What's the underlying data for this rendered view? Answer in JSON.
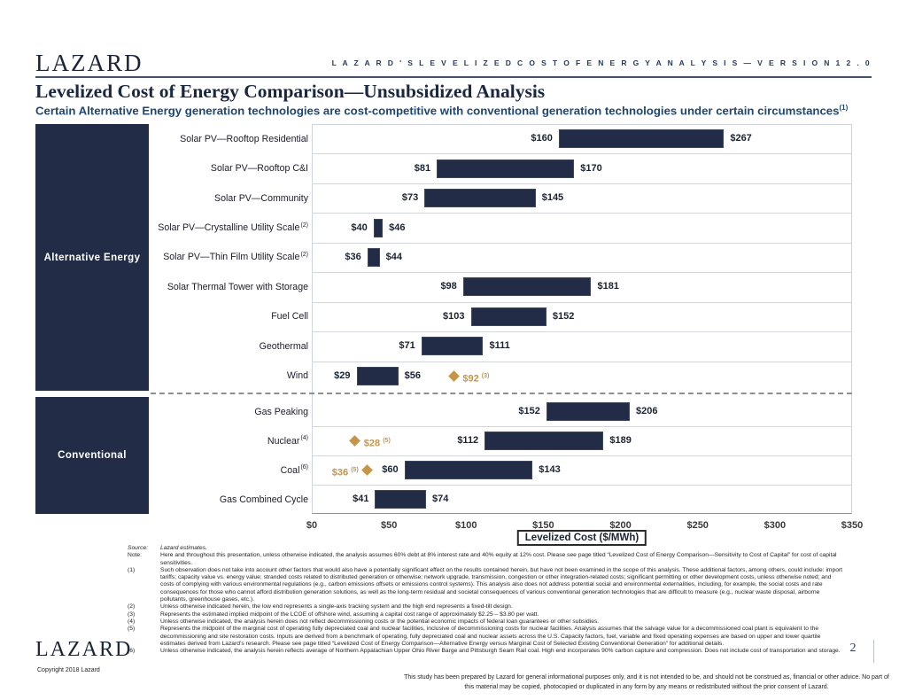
{
  "header": {
    "logo": "LAZARD",
    "right_title": "L A Z A R D ' S   L E V E L I Z E D   C O S T   O F   E N E R G Y   A N A L Y S I S — V E R S I O N   1 2 . 0",
    "title": "Levelized Cost of Energy Comparison—Unsubsidized Analysis",
    "subtitle": "Certain Alternative Energy generation technologies are cost-competitive with conventional generation technologies under certain circumstances",
    "subtitle_sup": "(1)"
  },
  "chart_data": {
    "type": "bar",
    "variant": "horizontal-range",
    "xlabel": "Levelized Cost ($/MWh)",
    "xlim": [
      0,
      350
    ],
    "xticks": [
      {
        "v": 0,
        "label": "$0"
      },
      {
        "v": 50,
        "label": "$50"
      },
      {
        "v": 100,
        "label": "$100"
      },
      {
        "v": 150,
        "label": "$150"
      },
      {
        "v": 200,
        "label": "$200"
      },
      {
        "v": 250,
        "label": "$250"
      },
      {
        "v": 300,
        "label": "$300"
      },
      {
        "v": 350,
        "label": "$350"
      }
    ],
    "bar_color": "#232c47",
    "diamond_color": "#c6954a",
    "grid": "horizontal-row-separators",
    "legend_position": "none",
    "groups": [
      {
        "name": "Alternative Energy",
        "rows": [
          {
            "label": "Solar PV—Rooftop Residential",
            "sup": "",
            "low": 160,
            "high": 267,
            "low_label": "$160",
            "high_label": "$267"
          },
          {
            "label": "Solar PV—Rooftop C&I",
            "sup": "",
            "low": 81,
            "high": 170,
            "low_label": "$81",
            "high_label": "$170"
          },
          {
            "label": "Solar PV—Community",
            "sup": "",
            "low": 73,
            "high": 145,
            "low_label": "$73",
            "high_label": "$145"
          },
          {
            "label": "Solar PV—Crystalline Utility Scale",
            "sup": "(2)",
            "low": 40,
            "high": 46,
            "low_label": "$40",
            "high_label": "$46"
          },
          {
            "label": "Solar PV—Thin Film Utility Scale",
            "sup": "(2)",
            "low": 36,
            "high": 44,
            "low_label": "$36",
            "high_label": "$44"
          },
          {
            "label": "Solar Thermal Tower with Storage",
            "sup": "",
            "low": 98,
            "high": 181,
            "low_label": "$98",
            "high_label": "$181"
          },
          {
            "label": "Fuel Cell",
            "sup": "",
            "low": 103,
            "high": 152,
            "low_label": "$103",
            "high_label": "$152"
          },
          {
            "label": "Geothermal",
            "sup": "",
            "low": 71,
            "high": 111,
            "low_label": "$71",
            "high_label": "$111"
          },
          {
            "label": "Wind",
            "sup": "",
            "low": 29,
            "high": 56,
            "low_label": "$29",
            "high_label": "$56",
            "diamond": {
              "value": 92,
              "label": "$92",
              "sup": "(3)",
              "label_side": "right"
            }
          }
        ]
      },
      {
        "name": "Conventional",
        "rows": [
          {
            "label": "Gas Peaking",
            "sup": "",
            "low": 152,
            "high": 206,
            "low_label": "$152",
            "high_label": "$206"
          },
          {
            "label": "Nuclear",
            "sup": "(4)",
            "low": 112,
            "high": 189,
            "low_label": "$112",
            "high_label": "$189",
            "diamond": {
              "value": 28,
              "label": "$28",
              "sup": "(5)",
              "label_side": "right"
            }
          },
          {
            "label": "Coal",
            "sup": "(6)",
            "low": 60,
            "high": 143,
            "low_label": "$60",
            "high_label": "$143",
            "diamond": {
              "value": 36,
              "label": "$36",
              "sup": "(5)",
              "label_side": "left"
            }
          },
          {
            "label": "Gas Combined Cycle",
            "sup": "",
            "low": 41,
            "high": 74,
            "low_label": "$41",
            "high_label": "$74"
          }
        ]
      }
    ]
  },
  "footnotes": [
    {
      "label": "Source:",
      "text": "Lazard estimates.",
      "italic": true
    },
    {
      "label": "Note:",
      "text": "Here and throughout this presentation, unless otherwise indicated, the analysis assumes 60% debt at 8% interest rate and 40% equity at 12% cost. Please see page titled “Levelized Cost of Energy Comparison—Sensitivity to Cost of Capital” for cost of capital sensitivities.",
      "italic": false
    },
    {
      "label": "(1)",
      "text": "Such observation does not take into account other factors that would also have a potentially significant effect on the results contained herein, but have not been examined in the scope of this analysis. These additional factors, among others, could include: import tariffs; capacity value vs. energy value; stranded costs related to distributed generation or otherwise; network upgrade, transmission, congestion or other integration-related costs; significant permitting or other development costs, unless otherwise noted; and costs of complying with various environmental regulations (e.g., carbon emissions offsets or emissions control systems). This analysis also does not address potential social and environmental externalities, including, for example, the social costs and rate consequences for those who cannot afford distribution generation solutions, as well as the long-term residual and societal consequences of various conventional generation technologies that are difficult to measure (e.g., nuclear waste disposal, airborne pollutants, greenhouse gases, etc.).",
      "italic": false
    },
    {
      "label": "(2)",
      "text": "Unless otherwise indicated herein, the low end represents a single-axis tracking system and the high end represents a fixed-tilt design.",
      "italic": false
    },
    {
      "label": "(3)",
      "text": "Represents the estimated implied midpoint of the LCOE of offshore wind, assuming a capital cost range of approximately $2.25 – $3.80 per watt.",
      "italic": false
    },
    {
      "label": "(4)",
      "text": "Unless otherwise indicated, the analysis herein does not reflect decommissioning costs or the potential economic impacts of federal loan guarantees or other subsidies.",
      "italic": false
    },
    {
      "label": "(5)",
      "text": "Represents the midpoint of the marginal cost of operating fully depreciated coal and nuclear facilities, inclusive of decommissioning costs for nuclear facilities. Analysis assumes that the salvage value for a decommissioned coal plant is equivalent to the decommissioning and site restoration costs. Inputs are derived from a benchmark of operating, fully depreciated coal and nuclear assets across the U.S. Capacity factors, fuel, variable and fixed operating expenses are based on upper and lower quartile estimates derived from Lazard’s research. Please see page titled “Levelized Cost of Energy Comparison—Alternative Energy versus Marginal Cost of Selected Existing Conventional Generation” for additional details.",
      "italic": false
    },
    {
      "label": "(6)",
      "text": "Unless otherwise indicated, the analysis herein reflects average of Northern Appalachian Upper Ohio River Barge and Pittsburgh Seam Rail coal. High end incorporates 90% carbon capture and compression. Does not include cost of transportation and storage.",
      "italic": false
    }
  ],
  "footer": {
    "logo": "LAZARD",
    "copyright": "Copyright 2018 Lazard",
    "disclaimer": "This study has been prepared by Lazard for general informational purposes only, and it is not intended to be, and should not be construed as, financial or other advice. No part of this material may be copied, photocopied or duplicated in any form by any means or redistributed without the prior consent of Lazard.",
    "page_number": "2"
  }
}
